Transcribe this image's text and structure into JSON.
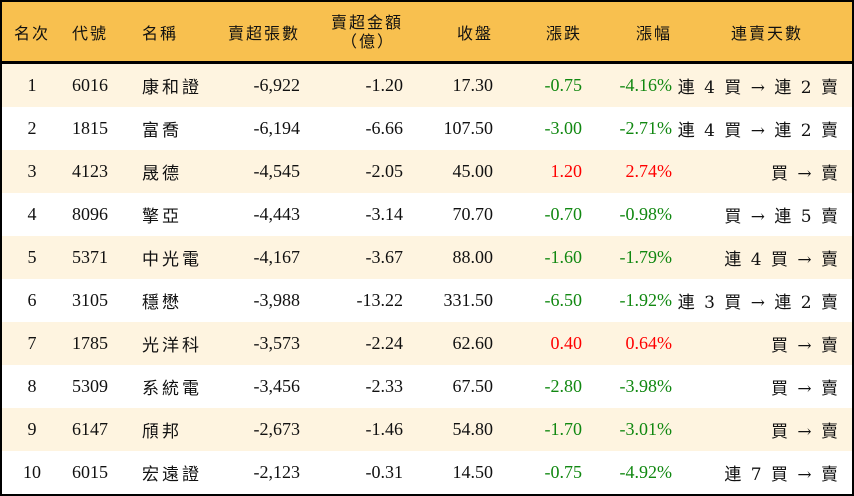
{
  "table": {
    "headers": {
      "rank": "名次",
      "code": "代號",
      "name": "名稱",
      "net_sell_shares": "賣超張數",
      "net_sell_amount_line1": "賣超金額",
      "net_sell_amount_line2": "（億）",
      "close": "收盤",
      "change": "漲跌",
      "change_pct": "漲幅",
      "streak": "連賣天數"
    },
    "colors": {
      "header_bg": "#F8C04F",
      "odd_row_bg": "#FEF4E0",
      "even_row_bg": "#FFFFFF",
      "up": "#FF0000",
      "down": "#118811",
      "border": "#000000"
    },
    "rows": [
      {
        "rank": "1",
        "code": "6016",
        "name": "康和證",
        "shares": "-6,922",
        "amount": "-1.20",
        "close": "17.30",
        "change": "-0.75",
        "pct": "-4.16%",
        "dir": "down",
        "streak": "連 4 買 → 連 2 賣"
      },
      {
        "rank": "2",
        "code": "1815",
        "name": "富喬",
        "shares": "-6,194",
        "amount": "-6.66",
        "close": "107.50",
        "change": "-3.00",
        "pct": "-2.71%",
        "dir": "down",
        "streak": "連 4 買 → 連 2 賣"
      },
      {
        "rank": "3",
        "code": "4123",
        "name": "晟德",
        "shares": "-4,545",
        "amount": "-2.05",
        "close": "45.00",
        "change": "1.20",
        "pct": "2.74%",
        "dir": "up",
        "streak": "買 → 賣"
      },
      {
        "rank": "4",
        "code": "8096",
        "name": "擎亞",
        "shares": "-4,443",
        "amount": "-3.14",
        "close": "70.70",
        "change": "-0.70",
        "pct": "-0.98%",
        "dir": "down",
        "streak": "買 → 連 5 賣"
      },
      {
        "rank": "5",
        "code": "5371",
        "name": "中光電",
        "shares": "-4,167",
        "amount": "-3.67",
        "close": "88.00",
        "change": "-1.60",
        "pct": "-1.79%",
        "dir": "down",
        "streak": "連 4 買 → 賣"
      },
      {
        "rank": "6",
        "code": "3105",
        "name": "穩懋",
        "shares": "-3,988",
        "amount": "-13.22",
        "close": "331.50",
        "change": "-6.50",
        "pct": "-1.92%",
        "dir": "down",
        "streak": "連 3 買 → 連 2 賣"
      },
      {
        "rank": "7",
        "code": "1785",
        "name": "光洋科",
        "shares": "-3,573",
        "amount": "-2.24",
        "close": "62.60",
        "change": "0.40",
        "pct": "0.64%",
        "dir": "up",
        "streak": "買 → 賣"
      },
      {
        "rank": "8",
        "code": "5309",
        "name": "系統電",
        "shares": "-3,456",
        "amount": "-2.33",
        "close": "67.50",
        "change": "-2.80",
        "pct": "-3.98%",
        "dir": "down",
        "streak": "買 → 賣"
      },
      {
        "rank": "9",
        "code": "6147",
        "name": "頎邦",
        "shares": "-2,673",
        "amount": "-1.46",
        "close": "54.80",
        "change": "-1.70",
        "pct": "-3.01%",
        "dir": "down",
        "streak": "買 → 賣"
      },
      {
        "rank": "10",
        "code": "6015",
        "name": "宏遠證",
        "shares": "-2,123",
        "amount": "-0.31",
        "close": "14.50",
        "change": "-0.75",
        "pct": "-4.92%",
        "dir": "down",
        "streak": "連 7 買 → 賣"
      }
    ]
  }
}
